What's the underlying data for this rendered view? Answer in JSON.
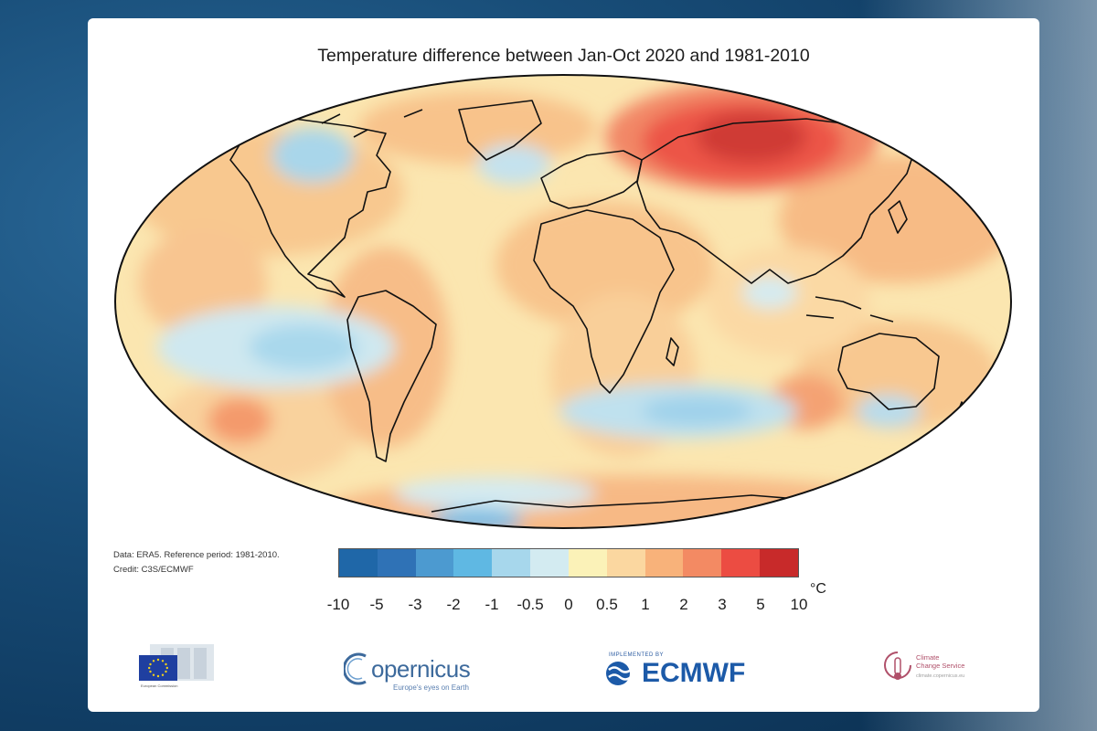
{
  "title": "Temperature difference between Jan-Oct 2020 and 1981-2010",
  "credit": {
    "line1": "Data: ERA5.  Reference period: 1981-2010.",
    "line2": "Credit: C3S/ECMWF"
  },
  "legend": {
    "unit": "°C",
    "colors": [
      "#1f67a8",
      "#2f72b6",
      "#4c9ad0",
      "#5fb8e3",
      "#a7d7ec",
      "#d3ebf1",
      "#fbf2b8",
      "#fbd7a0",
      "#f8b27a",
      "#f38a63",
      "#ec4c42",
      "#c82a2a"
    ],
    "tick_labels": [
      "-10",
      "-5",
      "-3",
      "-2",
      "-1",
      "-0.5",
      "0",
      "0.5",
      "1",
      "2",
      "3",
      "5",
      "10"
    ]
  },
  "logos": {
    "eu_label": "European Commission",
    "copernicus_word": "opernicus",
    "copernicus_tagline": "Europe's eyes on Earth",
    "ecmwf_small": "IMPLEMENTED BY",
    "ecmwf_word": "ECMWF",
    "ccs_line1": "Climate",
    "ccs_line2": "Change Service",
    "ccs_url": "climate.copernicus.eu"
  }
}
